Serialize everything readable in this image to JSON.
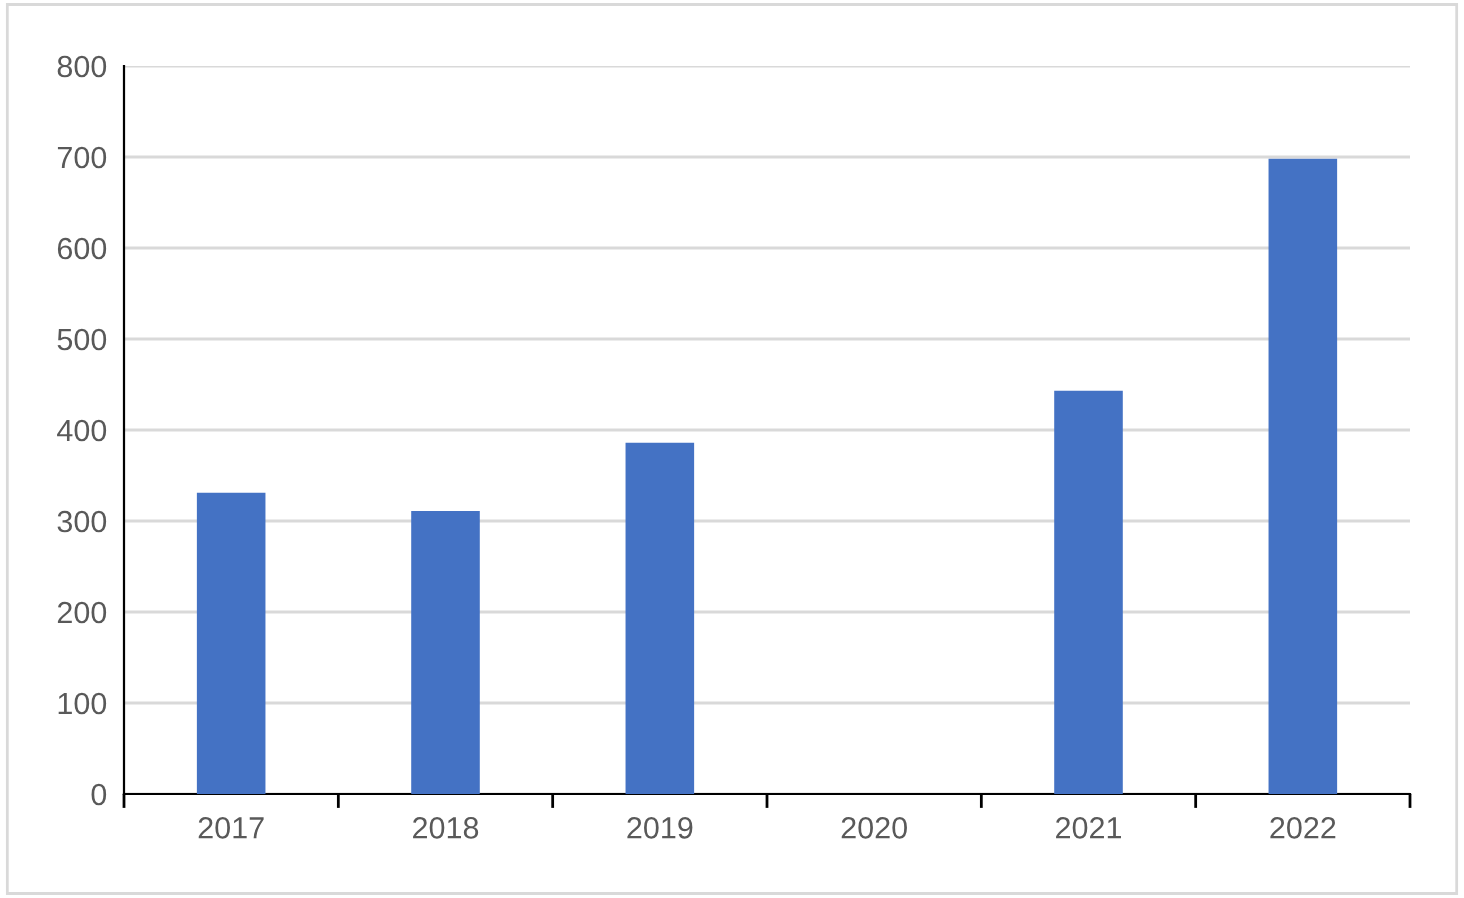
{
  "chart_data": {
    "type": "bar",
    "categories": [
      "2017",
      "2018",
      "2019",
      "2020",
      "2021",
      "2022"
    ],
    "values": [
      331,
      311,
      386,
      null,
      443,
      698
    ],
    "color": "#4472c4",
    "ylim": [
      0,
      800
    ],
    "yticks": [
      0,
      100,
      200,
      300,
      400,
      500,
      600,
      700,
      800
    ],
    "grid": "y",
    "legend": false
  }
}
